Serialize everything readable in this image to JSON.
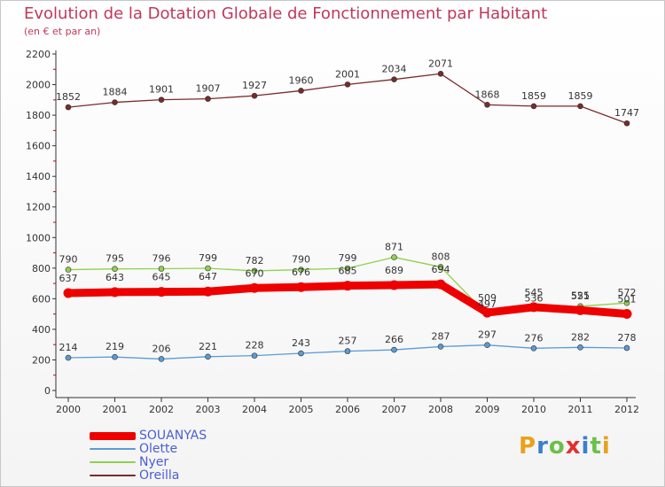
{
  "title": "Evolution de la Dotation Globale de Fonctionnement par Habitant",
  "subtitle": "(en € et par an)",
  "logo": {
    "text": "Proxiti",
    "colors": [
      "#e8a21a",
      "#3a7fd0",
      "#6cc04a",
      "#e03030",
      "#3a7fd0",
      "#6cc04a",
      "#e8a21a"
    ]
  },
  "colors": {
    "title": "#c0385b",
    "axis_red": "#cc0000",
    "legend_text": "#4a5fd0"
  },
  "chart_data": {
    "type": "line",
    "categories": [
      "2000",
      "2001",
      "2002",
      "2003",
      "2004",
      "2005",
      "2006",
      "2007",
      "2008",
      "2009",
      "2010",
      "2011",
      "2012"
    ],
    "ylim": [
      0,
      2200
    ],
    "yticks": [
      0,
      200,
      400,
      600,
      800,
      1000,
      1200,
      1400,
      1600,
      1800,
      2000,
      2200
    ],
    "grid": false,
    "legend": "bottom-left",
    "series": [
      {
        "name": "SOUANYAS",
        "color": "#ee0000",
        "values": [
          637,
          643,
          645,
          647,
          670,
          676,
          685,
          689,
          694,
          509,
          545,
          525,
          501
        ]
      },
      {
        "name": "Olette",
        "color": "#5b9bd5",
        "values": [
          214,
          219,
          206,
          221,
          228,
          243,
          257,
          266,
          287,
          297,
          276,
          282,
          278
        ]
      },
      {
        "name": "Nyer",
        "color": "#8fd14f",
        "values": [
          790,
          795,
          796,
          799,
          782,
          790,
          799,
          871,
          808,
          497,
          536,
          551,
          572
        ]
      },
      {
        "name": "Oreilla",
        "color": "#7b2a2a",
        "values": [
          1852,
          1884,
          1901,
          1907,
          1927,
          1960,
          2001,
          2034,
          2071,
          1868,
          1859,
          1859,
          1747
        ]
      }
    ]
  }
}
